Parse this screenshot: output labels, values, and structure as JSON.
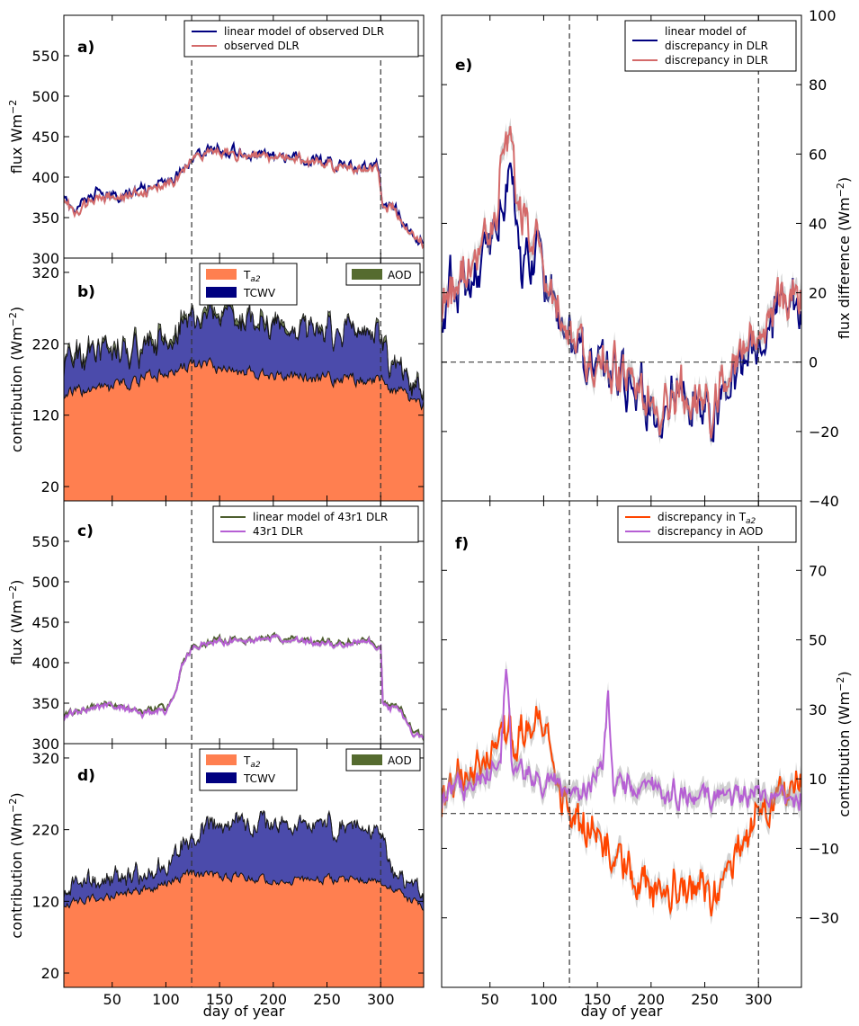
{
  "figure": {
    "xlabel": "day of year",
    "x_ticks": [
      50,
      100,
      150,
      200,
      250,
      300
    ],
    "vlines": [
      124,
      300
    ],
    "xlim": [
      5,
      340
    ]
  },
  "chart_data": [
    {
      "id": "a",
      "type": "line",
      "panel_label": "a)",
      "ylabel": "flux Wm-2",
      "ylim": [
        300,
        600
      ],
      "yticks": [
        300,
        350,
        400,
        450,
        500,
        550
      ],
      "legend": [
        "linear model of observed DLR",
        "observed DLR"
      ],
      "legend_position": "top-right",
      "colors": {
        "model": "#000080",
        "obs": "#d46a6a"
      },
      "series": [
        {
          "name": "linear model of observed DLR",
          "keypoints": [
            [
              5,
              385
            ],
            [
              15,
              355
            ],
            [
              30,
              380
            ],
            [
              50,
              375
            ],
            [
              80,
              385
            ],
            [
              100,
              390
            ],
            [
              112,
              405
            ],
            [
              124,
              428
            ],
            [
              150,
              435
            ],
            [
              180,
              428
            ],
            [
              210,
              425
            ],
            [
              240,
              420
            ],
            [
              270,
              415
            ],
            [
              296,
              412
            ],
            [
              302,
              370
            ],
            [
              315,
              360
            ],
            [
              322,
              345
            ],
            [
              328,
              330
            ],
            [
              340,
              322
            ]
          ]
        },
        {
          "name": "observed DLR",
          "keypoints": [
            [
              5,
              380
            ],
            [
              15,
              352
            ],
            [
              30,
              372
            ],
            [
              50,
              375
            ],
            [
              80,
              380
            ],
            [
              100,
              388
            ],
            [
              112,
              402
            ],
            [
              124,
              425
            ],
            [
              150,
              432
            ],
            [
              180,
              428
            ],
            [
              210,
              422
            ],
            [
              240,
              418
            ],
            [
              270,
              413
            ],
            [
              296,
              410
            ],
            [
              302,
              368
            ],
            [
              315,
              358
            ],
            [
              322,
              342
            ],
            [
              328,
              330
            ],
            [
              340,
              322
            ]
          ]
        }
      ]
    },
    {
      "id": "b",
      "type": "area",
      "panel_label": "b)",
      "ylabel": "contribution (Wm-2)",
      "ylim": [
        0,
        340
      ],
      "yticks": [
        20,
        120,
        220,
        320
      ],
      "legend": [
        "Ta2",
        "TCWV",
        "AOD"
      ],
      "legend_position": "top",
      "colors": {
        "t": "#ff7f50",
        "tcwv": "#4b4bab",
        "aod": "#6e7e54"
      },
      "series": [
        {
          "name": "Ta2",
          "keypoints": [
            [
              5,
              150
            ],
            [
              30,
              155
            ],
            [
              60,
              162
            ],
            [
              90,
              175
            ],
            [
              110,
              183
            ],
            [
              124,
              190
            ],
            [
              160,
              185
            ],
            [
              200,
              175
            ],
            [
              240,
              172
            ],
            [
              280,
              170
            ],
            [
              300,
              168
            ],
            [
              320,
              150
            ],
            [
              340,
              135
            ]
          ]
        },
        {
          "name": "TCWV",
          "keypoints": [
            [
              5,
              45
            ],
            [
              30,
              50
            ],
            [
              60,
              42
            ],
            [
              90,
              40
            ],
            [
              110,
              55
            ],
            [
              124,
              65
            ],
            [
              160,
              70
            ],
            [
              200,
              70
            ],
            [
              240,
              68
            ],
            [
              280,
              68
            ],
            [
              300,
              65
            ],
            [
              310,
              25
            ],
            [
              340,
              15
            ]
          ]
        },
        {
          "name": "AOD",
          "keypoints": [
            [
              5,
              6
            ],
            [
              50,
              5
            ],
            [
              100,
              8
            ],
            [
              150,
              6
            ],
            [
              200,
              4
            ],
            [
              250,
              3
            ],
            [
              300,
              3
            ],
            [
              340,
              2
            ]
          ]
        }
      ]
    },
    {
      "id": "c",
      "type": "line",
      "panel_label": "c)",
      "ylabel": "flux (Wm-2)",
      "ylim": [
        300,
        600
      ],
      "yticks": [
        300,
        350,
        400,
        450,
        500,
        550
      ],
      "legend": [
        "linear model of 43r1 DLR",
        "43r1 DLR"
      ],
      "legend_position": "top-right",
      "colors": {
        "model": "#4d5e2e",
        "obs": "#b65fd4"
      },
      "series": [
        {
          "name": "linear model of 43r1 DLR",
          "keypoints": [
            [
              5,
              335
            ],
            [
              20,
              340
            ],
            [
              40,
              350
            ],
            [
              60,
              345
            ],
            [
              80,
              340
            ],
            [
              100,
              345
            ],
            [
              110,
              365
            ],
            [
              115,
              400
            ],
            [
              124,
              420
            ],
            [
              150,
              428
            ],
            [
              200,
              430
            ],
            [
              250,
              426
            ],
            [
              290,
              428
            ],
            [
              300,
              420
            ],
            [
              302,
              350
            ],
            [
              320,
              340
            ],
            [
              330,
              315
            ],
            [
              340,
              308
            ]
          ]
        },
        {
          "name": "43r1 DLR",
          "keypoints": [
            [
              5,
              333
            ],
            [
              20,
              338
            ],
            [
              40,
              348
            ],
            [
              60,
              344
            ],
            [
              80,
              338
            ],
            [
              100,
              342
            ],
            [
              110,
              365
            ],
            [
              115,
              398
            ],
            [
              124,
              418
            ],
            [
              150,
              426
            ],
            [
              200,
              430
            ],
            [
              250,
              424
            ],
            [
              290,
              426
            ],
            [
              300,
              418
            ],
            [
              302,
              348
            ],
            [
              320,
              338
            ],
            [
              330,
              313
            ],
            [
              340,
              306
            ]
          ]
        }
      ]
    },
    {
      "id": "d",
      "type": "area",
      "panel_label": "d)",
      "ylabel": "contribution (Wm-2)",
      "ylim": [
        0,
        340
      ],
      "yticks": [
        20,
        120,
        220,
        320
      ],
      "legend": [
        "Ta2",
        "TCWV",
        "AOD"
      ],
      "legend_position": "top",
      "colors": {
        "t": "#ff7f50",
        "tcwv": "#4b4bab",
        "aod": "#6e7e54"
      },
      "series": [
        {
          "name": "Ta2",
          "keypoints": [
            [
              5,
              118
            ],
            [
              30,
              122
            ],
            [
              60,
              130
            ],
            [
              90,
              140
            ],
            [
              110,
              150
            ],
            [
              124,
              158
            ],
            [
              160,
              155
            ],
            [
              200,
              150
            ],
            [
              240,
              150
            ],
            [
              280,
              152
            ],
            [
              300,
              150
            ],
            [
              320,
              130
            ],
            [
              340,
              110
            ]
          ]
        },
        {
          "name": "TCWV",
          "keypoints": [
            [
              5,
              22
            ],
            [
              30,
              25
            ],
            [
              60,
              25
            ],
            [
              90,
              20
            ],
            [
              110,
              35
            ],
            [
              124,
              55
            ],
            [
              160,
              75
            ],
            [
              200,
              78
            ],
            [
              240,
              78
            ],
            [
              280,
              75
            ],
            [
              300,
              70
            ],
            [
              310,
              25
            ],
            [
              340,
              12
            ]
          ]
        },
        {
          "name": "AOD",
          "keypoints": [
            [
              5,
              1
            ],
            [
              100,
              1
            ],
            [
              200,
              1
            ],
            [
              340,
              1
            ]
          ]
        }
      ]
    },
    {
      "id": "e",
      "type": "line",
      "panel_label": "e)",
      "ylabel": "flux difference (Wm-2)",
      "ylim": [
        -40,
        100
      ],
      "yticks": [
        -40,
        -20,
        0,
        20,
        40,
        60,
        80,
        100
      ],
      "legend": [
        "linear model of discrepancy in DLR",
        "discrepancy in DLR"
      ],
      "legend_position": "top-right",
      "colors": {
        "model": "#000080",
        "obs": "#d46a6a"
      },
      "series": [
        {
          "name": "linear model of discrepancy in DLR",
          "keypoints": [
            [
              5,
              18
            ],
            [
              20,
              25
            ],
            [
              40,
              30
            ],
            [
              55,
              35
            ],
            [
              65,
              55
            ],
            [
              80,
              30
            ],
            [
              100,
              25
            ],
            [
              115,
              15
            ],
            [
              124,
              5
            ],
            [
              150,
              0
            ],
            [
              170,
              -5
            ],
            [
              200,
              -15
            ],
            [
              230,
              -10
            ],
            [
              260,
              -15
            ],
            [
              280,
              -5
            ],
            [
              300,
              5
            ],
            [
              320,
              15
            ],
            [
              340,
              15
            ]
          ]
        },
        {
          "name": "discrepancy in DLR",
          "keypoints": [
            [
              5,
              20
            ],
            [
              20,
              25
            ],
            [
              40,
              32
            ],
            [
              55,
              40
            ],
            [
              65,
              70
            ],
            [
              80,
              40
            ],
            [
              100,
              28
            ],
            [
              115,
              15
            ],
            [
              124,
              5
            ],
            [
              150,
              0
            ],
            [
              170,
              -5
            ],
            [
              200,
              -12
            ],
            [
              230,
              -10
            ],
            [
              260,
              -12
            ],
            [
              280,
              -2
            ],
            [
              300,
              8
            ],
            [
              320,
              15
            ],
            [
              340,
              18
            ]
          ]
        }
      ]
    },
    {
      "id": "f",
      "type": "line",
      "panel_label": "f)",
      "ylabel": "contribution (Wm-2)",
      "ylim": [
        -50,
        90
      ],
      "yticks": [
        -30,
        -10,
        10,
        30,
        50,
        70
      ],
      "legend": [
        "discrepancy in Ta2",
        "discrepancy in AOD"
      ],
      "legend_position": "top-right",
      "colors": {
        "t": "#ff4500",
        "aod": "#b65fd4"
      },
      "series": [
        {
          "name": "discrepancy in Ta2",
          "keypoints": [
            [
              5,
              5
            ],
            [
              20,
              10
            ],
            [
              40,
              15
            ],
            [
              50,
              20
            ],
            [
              60,
              25
            ],
            [
              75,
              22
            ],
            [
              90,
              25
            ],
            [
              100,
              28
            ],
            [
              110,
              10
            ],
            [
              124,
              0
            ],
            [
              140,
              -5
            ],
            [
              160,
              -10
            ],
            [
              180,
              -15
            ],
            [
              200,
              -25
            ],
            [
              220,
              -20
            ],
            [
              240,
              -20
            ],
            [
              260,
              -25
            ],
            [
              280,
              -10
            ],
            [
              300,
              0
            ],
            [
              320,
              5
            ],
            [
              340,
              8
            ]
          ]
        },
        {
          "name": "discrepancy in AOD",
          "keypoints": [
            [
              5,
              5
            ],
            [
              20,
              8
            ],
            [
              40,
              10
            ],
            [
              60,
              15
            ],
            [
              65,
              45
            ],
            [
              70,
              15
            ],
            [
              90,
              10
            ],
            [
              110,
              8
            ],
            [
              124,
              6
            ],
            [
              145,
              8
            ],
            [
              155,
              15
            ],
            [
              160,
              35
            ],
            [
              165,
              10
            ],
            [
              200,
              7
            ],
            [
              250,
              5
            ],
            [
              300,
              5
            ],
            [
              340,
              4
            ]
          ]
        }
      ]
    }
  ]
}
